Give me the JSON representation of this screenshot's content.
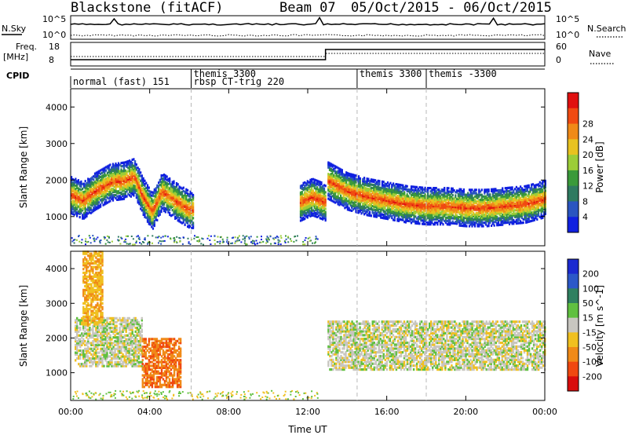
{
  "header": {
    "site": "Blackstone (fitACF)",
    "beam": "Beam 07",
    "date_range": "05/Oct/2015 - 06/Oct/2015"
  },
  "top_panels": {
    "nsky_label": "N.Sky",
    "nsearch_label": "N.Search",
    "noise_tick_high": "10^5",
    "noise_tick_low": "10^0",
    "freq_label_1": "Freq.",
    "freq_label_2": "[MHz]",
    "freq_tick_high": "18",
    "freq_tick_low": "8",
    "nave_label": "Nave",
    "nave_tick_high": "60",
    "nave_tick_low": "0",
    "cpid_label": "CPID"
  },
  "cpid_segments": [
    {
      "label": "normal (fast) 151",
      "start_hour": 0.0,
      "row": 1
    },
    {
      "label": "themis 3300",
      "start_hour": 6.1,
      "row": 0
    },
    {
      "label": "rbsp CT-trig 220",
      "start_hour": 6.1,
      "row": 1
    },
    {
      "label": "themis 3300",
      "start_hour": 14.5,
      "row": 0
    },
    {
      "label": "themis -3300",
      "start_hour": 18.0,
      "row": 0
    }
  ],
  "chart_data": [
    {
      "type": "heatmap",
      "name": "power",
      "ylabel": "Slant Range [km]",
      "ylim": [
        200,
        4500
      ],
      "y_ticks": [
        1000,
        2000,
        3000,
        4000
      ],
      "xlim": [
        0,
        24
      ],
      "colorbar_label": "Power [dB]",
      "colorbar_ticks": [
        4,
        8,
        12,
        16,
        20,
        24,
        28
      ],
      "colorbar_colors": [
        "#1020e0",
        "#2a55c0",
        "#2e7a60",
        "#3a9a3a",
        "#9ccd38",
        "#e8c220",
        "#f08a18",
        "#f04a12",
        "#e01010"
      ],
      "bands": [
        {
          "t0": 0.0,
          "t1": 6.2,
          "center_path": [
            [
              0.0,
              1600
            ],
            [
              0.6,
              1450
            ],
            [
              1.2,
              1700
            ],
            [
              2.0,
              1950
            ],
            [
              2.7,
              2000
            ],
            [
              3.2,
              2100
            ],
            [
              3.6,
              1600
            ],
            [
              4.1,
              1150
            ],
            [
              4.6,
              1700
            ],
            [
              5.4,
              1400
            ],
            [
              6.0,
              1200
            ]
          ],
          "power": 26
        },
        {
          "t0": 11.6,
          "t1": 12.9,
          "center_path": [
            [
              11.6,
              1400
            ],
            [
              12.2,
              1550
            ],
            [
              12.9,
              1400
            ]
          ],
          "power": 24
        },
        {
          "t0": 13.0,
          "t1": 24.0,
          "center_path": [
            [
              13.0,
              2000
            ],
            [
              14.0,
              1700
            ],
            [
              15.0,
              1550
            ],
            [
              16.0,
              1450
            ],
            [
              17.0,
              1350
            ],
            [
              18.0,
              1300
            ],
            [
              19.0,
              1300
            ],
            [
              20.0,
              1250
            ],
            [
              21.0,
              1250
            ],
            [
              22.0,
              1300
            ],
            [
              23.0,
              1350
            ],
            [
              24.0,
              1500
            ]
          ],
          "power": 28
        }
      ]
    },
    {
      "type": "heatmap",
      "name": "velocity",
      "ylabel": "Slant Range [km]",
      "xlabel": "Time UT",
      "ylim": [
        200,
        4500
      ],
      "y_ticks": [
        1000,
        2000,
        3000,
        4000
      ],
      "xlim": [
        0,
        24
      ],
      "x_ticks": [
        "00:00",
        "04:00",
        "08:00",
        "12:00",
        "16:00",
        "20:00",
        "00:00"
      ],
      "colorbar_label": "Velocity [m s^-1]",
      "colorbar_ticks": [
        200,
        100,
        50,
        15,
        -15,
        -50,
        -100,
        -200
      ],
      "colorbar_colors": [
        "#1b2ad0",
        "#2b58c8",
        "#2f8060",
        "#60c040",
        "#c8c6c0",
        "#f0c020",
        "#f08a18",
        "#f04810",
        "#d80c0c"
      ],
      "regions": [
        {
          "t0": 0.2,
          "t1": 3.6,
          "r0": 1200,
          "r1": 2600,
          "velocity": 0
        },
        {
          "t0": 3.6,
          "t1": 5.6,
          "r0": 600,
          "r1": 2000,
          "velocity": -70
        },
        {
          "t0": 0.6,
          "t1": 1.6,
          "r0": 2400,
          "r1": 4500,
          "velocity": -30
        },
        {
          "t0": 13.0,
          "t1": 24.0,
          "r0": 1100,
          "r1": 2500,
          "velocity": 0
        }
      ]
    }
  ],
  "time_axis": {
    "xlabel": "Time UT"
  },
  "colors": {
    "grid_dash": "#b8b8b8"
  }
}
